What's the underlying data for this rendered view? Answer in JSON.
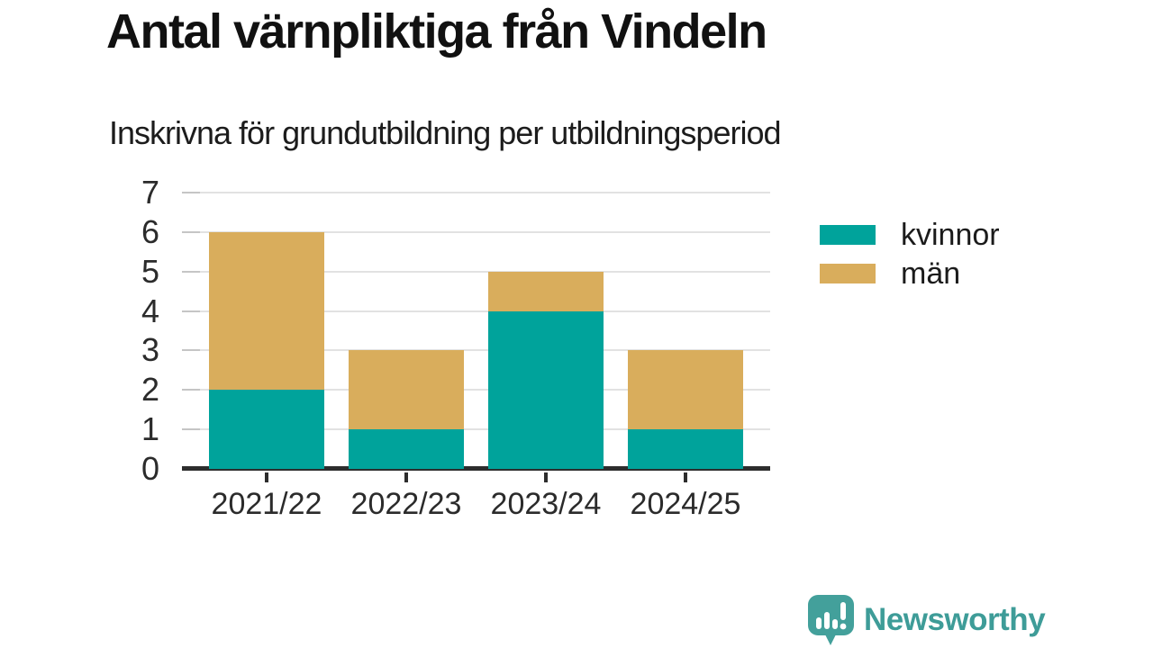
{
  "header": {
    "title": "Antal värnpliktiga från Vindeln",
    "subtitle": "Inskrivna för grundutbildning per utbildningsperiod"
  },
  "chart_data": {
    "type": "bar",
    "stacked": true,
    "title": "Antal värnpliktiga från Vindeln",
    "subtitle": "Inskrivna för grundutbildning per utbildningsperiod",
    "categories": [
      "2021/22",
      "2022/23",
      "2023/24",
      "2024/25"
    ],
    "series": [
      {
        "name": "kvinnor",
        "color": "#00a39b",
        "values": [
          2,
          1,
          4,
          1
        ]
      },
      {
        "name": "män",
        "color": "#d9ad5c",
        "values": [
          4,
          2,
          1,
          2
        ]
      }
    ],
    "totals": [
      6,
      3,
      5,
      3
    ],
    "xlabel": "",
    "ylabel": "",
    "ylim": [
      0,
      7
    ],
    "yticks": [
      0,
      1,
      2,
      3,
      4,
      5,
      6,
      7
    ],
    "grid": true,
    "legend_position": "right"
  },
  "colors": {
    "kvinnor": "#00a39b",
    "man": "#d9ad5c",
    "gridline": "#e2e2e2",
    "axis": "#2d2d2d",
    "text": "#1b1b1b",
    "brand": "#3e9c98"
  },
  "branding": {
    "logo_text": "Newsworthy",
    "logo_color": "#3e9c98",
    "logo_icon": "speech-bubble-bar-chart-icon"
  }
}
